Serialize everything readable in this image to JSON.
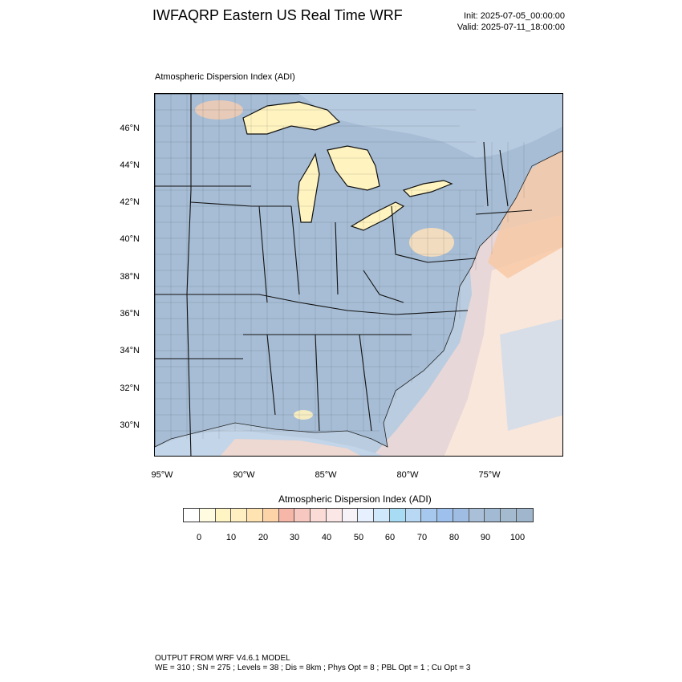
{
  "title": "IWFAQRP Eastern US Real Time WRF",
  "init": "Init: 2025-07-05_00:00:00",
  "valid": "Valid: 2025-07-11_18:00:00",
  "plot_label": "Atmospheric Dispersion Index   (ADI)",
  "lat_labels": [
    "46°N",
    "44°N",
    "42°N",
    "40°N",
    "38°N",
    "36°N",
    "34°N",
    "32°N",
    "30°N"
  ],
  "lon_labels": [
    "95°W",
    "90°W",
    "85°W",
    "80°W",
    "75°W"
  ],
  "colorbar": {
    "title": "Atmospheric Dispersion Index  (ADI)",
    "colors": [
      "#ffffff",
      "#fffbe0",
      "#fff4c4",
      "#ffeec0",
      "#ffe3b0",
      "#fdd4a8",
      "#f6b7a8",
      "#f7c8c0",
      "#fadbd6",
      "#fbe8e6",
      "#f7f2f8",
      "#e6f0ff",
      "#cfe8fb",
      "#a8dcf4",
      "#b8d8f4",
      "#a6c8ee",
      "#9ec0ec",
      "#9fbde2",
      "#a9c0d8",
      "#a2bad3",
      "#a4bbcf",
      "#9fb6cc"
    ],
    "labels": [
      "0",
      "10",
      "20",
      "30",
      "40",
      "50",
      "60",
      "70",
      "80",
      "90",
      "100"
    ]
  },
  "footer": {
    "line1": "OUTPUT FROM WRF V4.6.1 MODEL",
    "line2": "WE = 310 ; SN = 275 ; Levels = 38 ; Dis = 8km ; Phys Opt = 8 ; PBL Opt = 1 ; Cu Opt = 3"
  }
}
